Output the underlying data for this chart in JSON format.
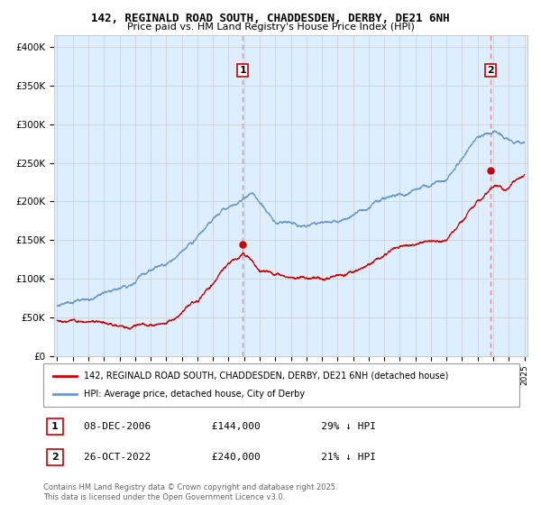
{
  "title_line1": "142, REGINALD ROAD SOUTH, CHADDESDEN, DERBY, DE21 6NH",
  "title_line2": "Price paid vs. HM Land Registry's House Price Index (HPI)",
  "legend_label_red": "142, REGINALD ROAD SOUTH, CHADDESDEN, DERBY, DE21 6NH (detached house)",
  "legend_label_blue": "HPI: Average price, detached house, City of Derby",
  "annotation1_label": "1",
  "annotation1_date": "08-DEC-2006",
  "annotation1_price": "£144,000",
  "annotation1_note": "29% ↓ HPI",
  "annotation2_label": "2",
  "annotation2_date": "26-OCT-2022",
  "annotation2_price": "£240,000",
  "annotation2_note": "21% ↓ HPI",
  "ylabel_ticks": [
    "£0",
    "£50K",
    "£100K",
    "£150K",
    "£200K",
    "£250K",
    "£300K",
    "£350K",
    "£400K"
  ],
  "ytick_values": [
    0,
    50000,
    100000,
    150000,
    200000,
    250000,
    300000,
    350000,
    400000
  ],
  "year_start": 1995,
  "year_end": 2025,
  "vline1_year": 2006.92,
  "vline2_year": 2022.81,
  "sale1_price": 144000,
  "sale2_price": 240000,
  "red_color": "#cc0000",
  "blue_color": "#6699cc",
  "blue_fill_color": "#ddeeff",
  "background_color": "#ffffff",
  "grid_color": "#cccccc",
  "vline_color": "#ee8888",
  "footer_text": "Contains HM Land Registry data © Crown copyright and database right 2025.\nThis data is licensed under the Open Government Licence v3.0."
}
